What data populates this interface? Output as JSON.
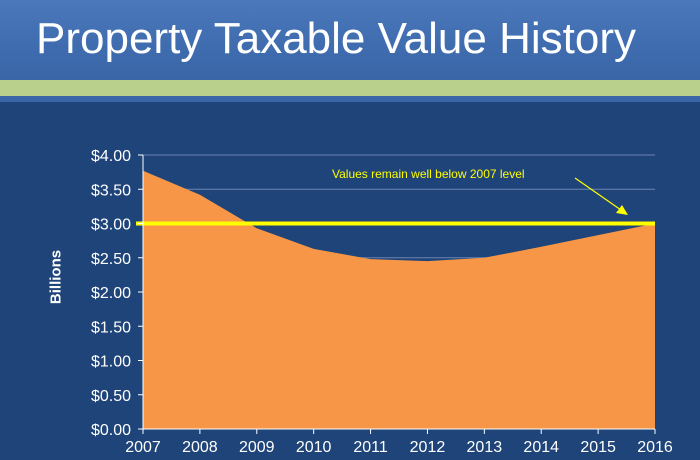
{
  "slide": {
    "title": "Property Taxable Value History"
  },
  "colors": {
    "background": "#1f4479",
    "title_band": "#3f6cae",
    "accent_bar": "#b9d08d",
    "area_fill": "#f79646",
    "reference_line": "#ffff00",
    "text": "#ffffff"
  },
  "chart_data": {
    "type": "area",
    "title": "",
    "xlabel": "",
    "ylabel": "Billions",
    "x": [
      "2007",
      "2008",
      "2009",
      "2010",
      "2011",
      "2012",
      "2013",
      "2014",
      "2015",
      "2016"
    ],
    "series": [
      {
        "values": [
          3.77,
          3.42,
          2.93,
          2.63,
          2.48,
          2.45,
          2.5,
          2.66,
          2.83,
          3.0
        ]
      }
    ],
    "ylim": [
      0,
      4
    ],
    "y_ticks": [
      "$0.00",
      "$0.50",
      "$1.00",
      "$1.50",
      "$2.00",
      "$2.50",
      "$3.00",
      "$3.50",
      "$4.00"
    ],
    "y_tick_values": [
      0,
      0.5,
      1,
      1.5,
      2,
      2.5,
      3,
      3.5,
      4
    ],
    "grid": true,
    "reference_line": {
      "y": 3.0
    },
    "annotation": {
      "text": "Values remain well below 2007 level",
      "points_to_x": "2016"
    }
  }
}
